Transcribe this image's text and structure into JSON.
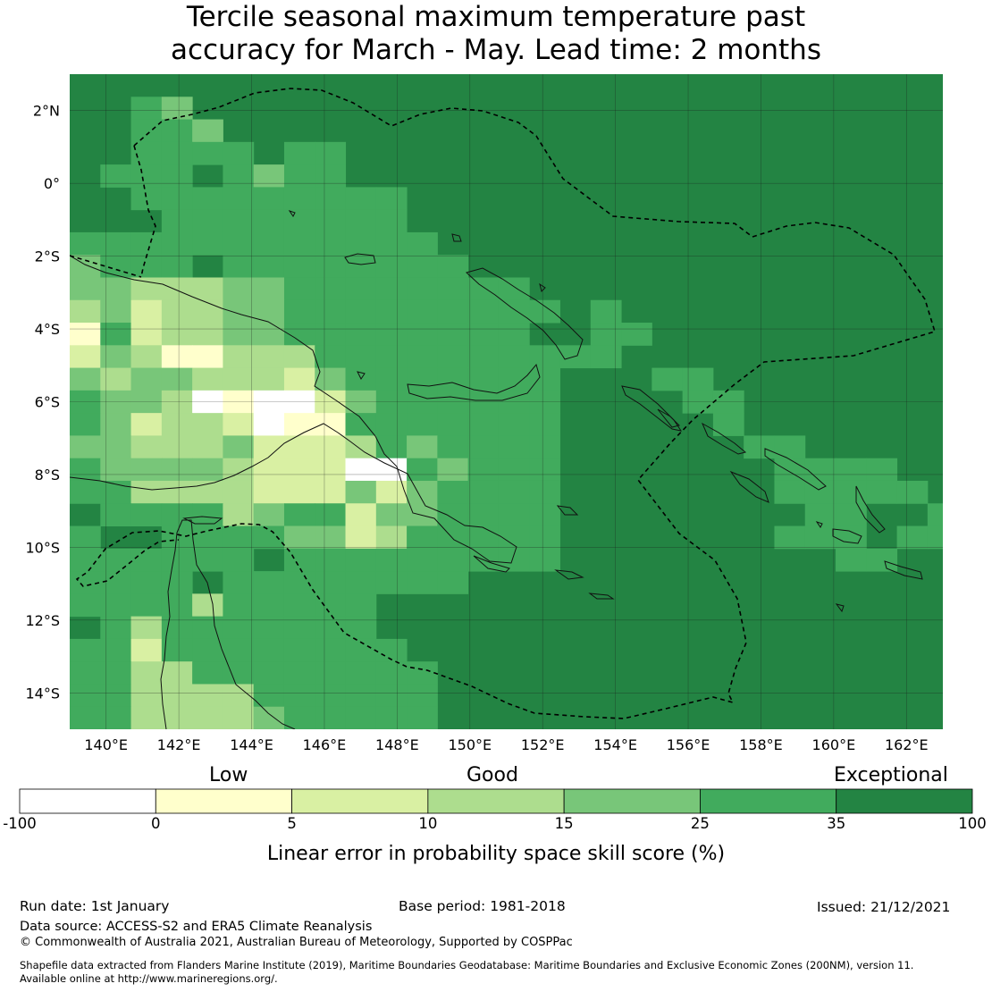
{
  "title": {
    "line1": "Tercile seasonal maximum temperature past",
    "line2": "accuracy for March - May. Lead time: 2 months"
  },
  "map": {
    "lon_range": [
      139,
      163
    ],
    "lat_range": [
      -15,
      3
    ],
    "lon_ticks": [
      140,
      142,
      144,
      146,
      148,
      150,
      152,
      154,
      156,
      158,
      160,
      162
    ],
    "lon_tick_labels": [
      "140°E",
      "142°E",
      "144°E",
      "146°E",
      "148°E",
      "150°E",
      "152°E",
      "154°E",
      "156°E",
      "158°E",
      "160°E",
      "162°E"
    ],
    "lat_ticks": [
      2,
      0,
      -2,
      -4,
      -6,
      -8,
      -10,
      -12,
      -14
    ],
    "lat_tick_labels": [
      "2°N",
      "0°",
      "2°S",
      "4°S",
      "6°S",
      "8°S",
      "10°S",
      "12°S",
      "14°S"
    ],
    "background_color": "#238443"
  },
  "colorbar": {
    "boundaries": [
      -100,
      0,
      5,
      10,
      15,
      25,
      35,
      100
    ],
    "tick_labels": [
      "-100",
      "0",
      "5",
      "10",
      "15",
      "25",
      "35",
      "100"
    ],
    "colors": [
      "#ffffff",
      "#ffffcc",
      "#d9f0a3",
      "#addd8e",
      "#78c679",
      "#41ab5d",
      "#238443"
    ],
    "categories": [
      "Low",
      "Good",
      "Exceptional"
    ],
    "title": "Linear error in probability space skill score (%)"
  },
  "footer": {
    "run_date": "Run date: 1st January",
    "base_period": "Base period: 1981-2018",
    "issued": "Issued: 21/12/2021",
    "data_source": "Data source: ACCESS-S2 and ERA5 Climate Reanalysis",
    "copyright": "© Commonwealth of Australia 2021, Australian Bureau of Meteorology, Supported by COSPPac",
    "shapefile_line1": "Shapefile data extracted from Flanders Marine Institute (2019), Maritime Boundaries Geodatabase: Maritime Boundaries and Exclusive Economic Zones (200NM), version 11.",
    "shapefile_line2": "Available online at http://www.marineregions.org/."
  }
}
